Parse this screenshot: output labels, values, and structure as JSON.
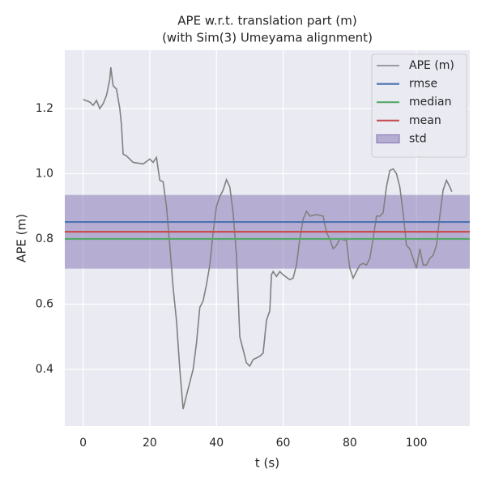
{
  "chart_data": {
    "type": "line",
    "title": "APE w.r.t. translation part (m)",
    "subtitle": "(with Sim(3) Umeyama alignment)",
    "x_label": "t (s)",
    "y_label": "APE (m)",
    "xlim": [
      -5.5,
      116
    ],
    "ylim": [
      0.226,
      1.379
    ],
    "xticks": [
      0,
      20,
      40,
      60,
      80,
      100
    ],
    "yticks": [
      0.4,
      0.6,
      0.8,
      {
        "value": 1,
        "label": "1.0"
      },
      1.2
    ],
    "grid": true,
    "legend": "upper right",
    "x": [
      0,
      2,
      3,
      4,
      5,
      6,
      7,
      8,
      8.3,
      9,
      10,
      11,
      11.5,
      12,
      13,
      15,
      18,
      20,
      21,
      22,
      23,
      24,
      25,
      26,
      27,
      28,
      29,
      30,
      31,
      32,
      33,
      34,
      35,
      36,
      37,
      38,
      39,
      40,
      41,
      42,
      43,
      44,
      45,
      46,
      47,
      48,
      49,
      50,
      51,
      53,
      54,
      55,
      56,
      56.5,
      57,
      58,
      59,
      60,
      62,
      63,
      64,
      65,
      66,
      67,
      68,
      70,
      72,
      73,
      74,
      75,
      76,
      77,
      79,
      80,
      81,
      82,
      83,
      84,
      85,
      86,
      87,
      88,
      89,
      90,
      91,
      92,
      93,
      94,
      95,
      96,
      97,
      98,
      99,
      100,
      101,
      102,
      103,
      104,
      105,
      106,
      107,
      108,
      109,
      110,
      110.6
    ],
    "series": [
      {
        "name": "APE (m)",
        "color": "#808080",
        "values": [
          1.228,
          1.22,
          1.21,
          1.225,
          1.2,
          1.215,
          1.24,
          1.29,
          1.327,
          1.27,
          1.26,
          1.2,
          1.15,
          1.06,
          1.055,
          1.035,
          1.03,
          1.045,
          1.035,
          1.05,
          0.98,
          0.975,
          0.9,
          0.78,
          0.65,
          0.55,
          0.4,
          0.278,
          0.32,
          0.36,
          0.4,
          0.48,
          0.59,
          0.61,
          0.66,
          0.72,
          0.82,
          0.9,
          0.93,
          0.95,
          0.982,
          0.96,
          0.88,
          0.75,
          0.5,
          0.46,
          0.42,
          0.41,
          0.43,
          0.44,
          0.45,
          0.55,
          0.58,
          0.69,
          0.7,
          0.685,
          0.7,
          0.69,
          0.675,
          0.68,
          0.72,
          0.8,
          0.86,
          0.885,
          0.87,
          0.875,
          0.87,
          0.82,
          0.8,
          0.77,
          0.78,
          0.8,
          0.795,
          0.71,
          0.68,
          0.7,
          0.72,
          0.725,
          0.72,
          0.74,
          0.8,
          0.87,
          0.87,
          0.88,
          0.96,
          1.01,
          1.015,
          1.0,
          0.96,
          0.88,
          0.78,
          0.77,
          0.74,
          0.71,
          0.77,
          0.72,
          0.72,
          0.74,
          0.75,
          0.78,
          0.87,
          0.95,
          0.98,
          0.96,
          0.945
        ]
      }
    ],
    "stats": [
      {
        "name": "rmse",
        "color": "#4c72b0",
        "value": 0.852
      },
      {
        "name": "median",
        "color": "#55a868",
        "value": 0.8
      },
      {
        "name": "mean",
        "color": "#c44e52",
        "value": 0.822
      }
    ],
    "std": {
      "name": "std",
      "color": "#8172b2",
      "value": 0.113
    }
  }
}
